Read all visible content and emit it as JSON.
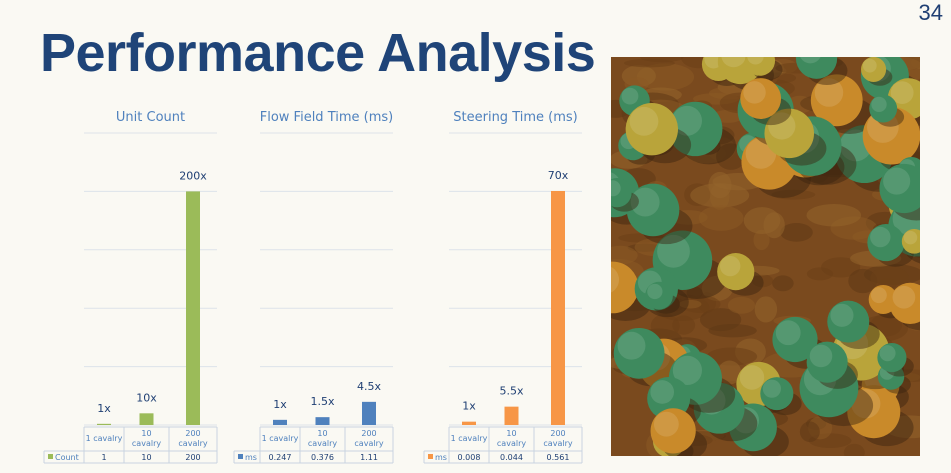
{
  "slide": {
    "title": "Performance Analysis",
    "page_number": "34"
  },
  "chart_data": [
    {
      "type": "bar",
      "title": "Unit Count",
      "categories": [
        "1 cavalry",
        "10 cavalry",
        "200 cavalry"
      ],
      "series": [
        {
          "name": "Count",
          "values": [
            1,
            10,
            200
          ],
          "color": "#9bbb59"
        }
      ],
      "value_labels": [
        "1",
        "10",
        "200"
      ],
      "data_labels": [
        "1x",
        "10x",
        "200x"
      ],
      "ylim": [
        0,
        250
      ],
      "grid": true,
      "data_table": true
    },
    {
      "type": "bar",
      "title": "Flow Field Time (ms)",
      "categories": [
        "1 cavalry",
        "10 cavalry",
        "200 cavalry"
      ],
      "series": [
        {
          "name": "ms",
          "values": [
            0.247,
            0.376,
            1.11
          ],
          "color": "#4f81bd"
        }
      ],
      "value_labels": [
        "0.247",
        "0.376",
        "1.11"
      ],
      "data_labels": [
        "1x",
        "1.5x",
        "4.5x"
      ],
      "ylim": [
        0,
        14
      ],
      "grid": true,
      "data_table": true
    },
    {
      "type": "bar",
      "title": "Steering Time (ms)",
      "categories": [
        "1 cavalry",
        "10 cavalry",
        "200 cavalry"
      ],
      "series": [
        {
          "name": "ms",
          "values": [
            0.008,
            0.044,
            0.561
          ],
          "color": "#f79646"
        }
      ],
      "value_labels": [
        "0.008",
        "0.044",
        "0.561"
      ],
      "data_labels": [
        "1x",
        "5.5x",
        "70x"
      ],
      "ylim": [
        0,
        0.7
      ],
      "grid": true,
      "data_table": true
    }
  ],
  "image": {
    "subject": "aerial view of autumn forest",
    "colors": {
      "ground": "#7a4a1e",
      "tree_green": "#3e8a5e",
      "tree_orange": "#c98a2a",
      "tree_yellow": "#b9a43a"
    }
  }
}
